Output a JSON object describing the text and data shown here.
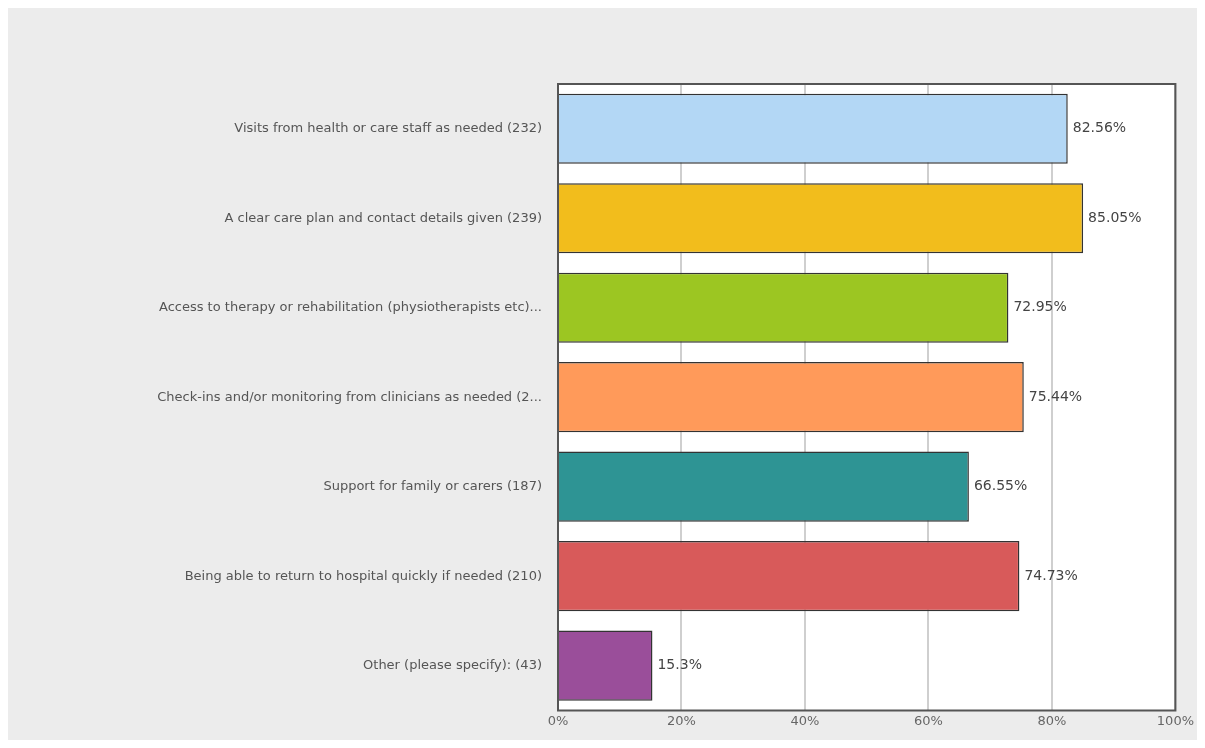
{
  "chart_data": {
    "type": "bar",
    "orientation": "horizontal",
    "categories": [
      "Visits from health or care staff as needed (232)",
      "A clear care plan and contact details given (239)",
      "Access to therapy or rehabilitation (physiotherapists etc)...",
      "Check-ins and/or monitoring from clinicians as needed (2...",
      "Support for family or carers (187)",
      "Being able to return to hospital quickly if needed (210)",
      "Other (please specify): (43)"
    ],
    "values": [
      82.56,
      85.05,
      72.95,
      75.44,
      66.55,
      74.73,
      15.3
    ],
    "value_labels": [
      "82.56%",
      "85.05%",
      "72.95%",
      "75.44%",
      "66.55%",
      "74.73%",
      "15.3%"
    ],
    "colors": [
      "#b3d7f5",
      "#f2bd1c",
      "#9cc622",
      "#ff9a5a",
      "#2e9494",
      "#d85a5a",
      "#9a4e9a"
    ],
    "xlim": [
      0,
      100
    ],
    "xticks": [
      {
        "value": 0,
        "label": "0%"
      },
      {
        "value": 20,
        "label": "20%"
      },
      {
        "value": 40,
        "label": "40%"
      },
      {
        "value": 60,
        "label": "60%"
      },
      {
        "value": 80,
        "label": "80%"
      },
      {
        "value": 100,
        "label": "100%"
      }
    ],
    "grid": "x",
    "legend": false
  }
}
